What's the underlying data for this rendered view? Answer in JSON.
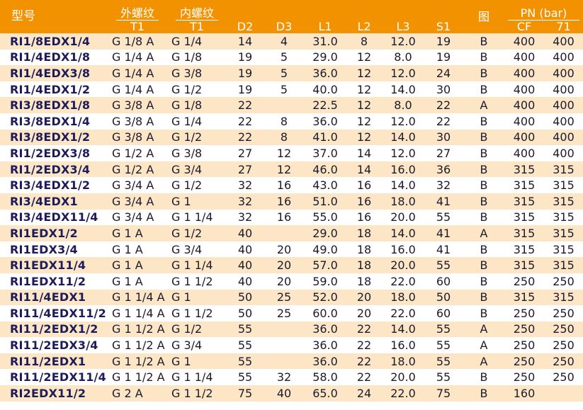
{
  "header": {
    "model": "型号",
    "external_thread": "外螺纹",
    "internal_thread": "内螺纹",
    "t1_ext": "T1",
    "t1_int": "T1",
    "d2": "D2",
    "d3": "D3",
    "l1": "L1",
    "l2": "L2",
    "l3": "L3",
    "s1": "S1",
    "figure": "图",
    "pn": "PN (bar)",
    "cf": "CF",
    "p71": "71"
  },
  "rows": [
    {
      "model": "RI1/8EDX1/4",
      "t1e": "G 1/8 A",
      "t1i": "G 1/4",
      "d2": "14",
      "d3": "4",
      "l1": "31.0",
      "l2": "8",
      "l3": "12.0",
      "s1": "19",
      "fig": "B",
      "cf": "400",
      "p71": "400"
    },
    {
      "model": "RI1/4EDX1/8",
      "t1e": "G 1/4 A",
      "t1i": "G 1/8",
      "d2": "19",
      "d3": "5",
      "l1": "29.0",
      "l2": "12",
      "l3": "8.0",
      "s1": "19",
      "fig": "B",
      "cf": "400",
      "p71": "400"
    },
    {
      "model": "RI1/4EDX3/8",
      "t1e": "G 1/4 A",
      "t1i": "G 3/8",
      "d2": "19",
      "d3": "5",
      "l1": "36.0",
      "l2": "12",
      "l3": "12.0",
      "s1": "24",
      "fig": "B",
      "cf": "400",
      "p71": "400"
    },
    {
      "model": "RI1/4EDX1/2",
      "t1e": "G 1/4 A",
      "t1i": "G 1/2",
      "d2": "19",
      "d3": "5",
      "l1": "40.0",
      "l2": "12",
      "l3": "14.0",
      "s1": "30",
      "fig": "B",
      "cf": "400",
      "p71": "400"
    },
    {
      "model": "RI3/8EDX1/8",
      "t1e": "G 3/8 A",
      "t1i": "G 1/8",
      "d2": "22",
      "d3": "",
      "l1": "22.5",
      "l2": "12",
      "l3": "8.0",
      "s1": "22",
      "fig": "A",
      "cf": "400",
      "p71": "400"
    },
    {
      "model": "RI3/8EDX1/4",
      "t1e": "G 3/8 A",
      "t1i": "G 1/4",
      "d2": "22",
      "d3": "8",
      "l1": "36.0",
      "l2": "12",
      "l3": "12.0",
      "s1": "22",
      "fig": "B",
      "cf": "400",
      "p71": "400"
    },
    {
      "model": "RI3/8EDX1/2",
      "t1e": "G 3/8 A",
      "t1i": "G 1/2",
      "d2": "22",
      "d3": "8",
      "l1": "41.0",
      "l2": "12",
      "l3": "14.0",
      "s1": "30",
      "fig": "B",
      "cf": "400",
      "p71": "400"
    },
    {
      "model": "RI1/2EDX3/8",
      "t1e": "G 1/2 A",
      "t1i": "G 3/8",
      "d2": "27",
      "d3": "12",
      "l1": "37.0",
      "l2": "14",
      "l3": "12.0",
      "s1": "27",
      "fig": "B",
      "cf": "400",
      "p71": "400"
    },
    {
      "model": "RI1/2EDX3/4",
      "t1e": "G 1/2 A",
      "t1i": "G 3/4",
      "d2": "27",
      "d3": "12",
      "l1": "46.0",
      "l2": "14",
      "l3": "16.0",
      "s1": "36",
      "fig": "B",
      "cf": "315",
      "p71": "315"
    },
    {
      "model": "RI3/4EDX1/2",
      "t1e": "G 3/4 A",
      "t1i": "G 1/2",
      "d2": "32",
      "d3": "16",
      "l1": "43.0",
      "l2": "16",
      "l3": "14.0",
      "s1": "32",
      "fig": "B",
      "cf": "315",
      "p71": "315"
    },
    {
      "model": "RI3/4EDX1",
      "t1e": "G 3/4 A",
      "t1i": "G 1",
      "d2": "32",
      "d3": "16",
      "l1": "51.0",
      "l2": "16",
      "l3": "18.0",
      "s1": "41",
      "fig": "B",
      "cf": "315",
      "p71": "315"
    },
    {
      "model": "RI3/4EDX11/4",
      "t1e": "G 3/4 A",
      "t1i": "G 1 1/4",
      "d2": "32",
      "d3": "16",
      "l1": "55.0",
      "l2": "16",
      "l3": "20.0",
      "s1": "55",
      "fig": "B",
      "cf": "315",
      "p71": "315"
    },
    {
      "model": "RI1EDX1/2",
      "t1e": "G 1 A",
      "t1i": "G 1/2",
      "d2": "40",
      "d3": "",
      "l1": "29.0",
      "l2": "18",
      "l3": "14.0",
      "s1": "41",
      "fig": "A",
      "cf": "315",
      "p71": "315"
    },
    {
      "model": "RI1EDX3/4",
      "t1e": "G 1 A",
      "t1i": "G 3/4",
      "d2": "40",
      "d3": "20",
      "l1": "49.0",
      "l2": "18",
      "l3": "16.0",
      "s1": "41",
      "fig": "B",
      "cf": "315",
      "p71": "315"
    },
    {
      "model": "RI1EDX11/4",
      "t1e": "G 1 A",
      "t1i": "G 1 1/4",
      "d2": "40",
      "d3": "20",
      "l1": "57.0",
      "l2": "18",
      "l3": "20.0",
      "s1": "55",
      "fig": "B",
      "cf": "315",
      "p71": "315"
    },
    {
      "model": "RI1EDX11/2",
      "t1e": "G 1 A",
      "t1i": "G 1 1/2",
      "d2": "40",
      "d3": "20",
      "l1": "59.0",
      "l2": "18",
      "l3": "22.0",
      "s1": "60",
      "fig": "B",
      "cf": "250",
      "p71": "250"
    },
    {
      "model": "RI11/4EDX1",
      "t1e": "G 1 1/4 A",
      "t1i": "G 1",
      "d2": "50",
      "d3": "25",
      "l1": "52.0",
      "l2": "20",
      "l3": "18.0",
      "s1": "50",
      "fig": "B",
      "cf": "315",
      "p71": "315"
    },
    {
      "model": "RI11/4EDX11/2",
      "t1e": "G 1 1/4 A",
      "t1i": "G 1 1/2",
      "d2": "50",
      "d3": "25",
      "l1": "60.0",
      "l2": "20",
      "l3": "22.0",
      "s1": "60",
      "fig": "B",
      "cf": "250",
      "p71": "250"
    },
    {
      "model": "RI11/2EDX1/2",
      "t1e": "G 1 1/2 A",
      "t1i": "G 1/2",
      "d2": "55",
      "d3": "",
      "l1": "36.0",
      "l2": "22",
      "l3": "14.0",
      "s1": "55",
      "fig": "A",
      "cf": "250",
      "p71": "250"
    },
    {
      "model": "RI11/2EDX3/4",
      "t1e": "G 1 1/2 A",
      "t1i": "G 3/4",
      "d2": "55",
      "d3": "",
      "l1": "36.0",
      "l2": "22",
      "l3": "16.0",
      "s1": "55",
      "fig": "A",
      "cf": "250",
      "p71": "250"
    },
    {
      "model": "RI11/2EDX1",
      "t1e": "G 1 1/2 A",
      "t1i": "G 1",
      "d2": "55",
      "d3": "",
      "l1": "36.0",
      "l2": "22",
      "l3": "18.0",
      "s1": "55",
      "fig": "A",
      "cf": "250",
      "p71": "250"
    },
    {
      "model": "RI11/2EDX11/4",
      "t1e": "G 1 1/2 A",
      "t1i": "G 1 1/4",
      "d2": "55",
      "d3": "32",
      "l1": "58.0",
      "l2": "22",
      "l3": "20.0",
      "s1": "55",
      "fig": "B",
      "cf": "250",
      "p71": "250"
    },
    {
      "model": "RI2EDX11/2",
      "t1e": "G 2 A",
      "t1i": "G 1 1/2",
      "d2": "75",
      "d3": "40",
      "l1": "65.0",
      "l2": "24",
      "l3": "22.0",
      "s1": "75",
      "fig": "B",
      "cf": "160",
      "p71": ""
    }
  ]
}
